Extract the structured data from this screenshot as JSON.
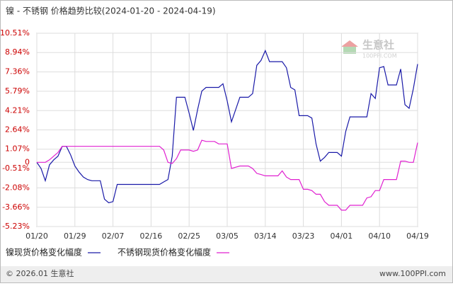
{
  "chart_data": {
    "type": "line",
    "title": "镍 - 不锈钢 价格趋势比较(2024-01-20 - 2024-04-19)",
    "categories": [
      "01/20",
      null,
      null,
      null,
      null,
      null,
      null,
      null,
      null,
      "01/29",
      null,
      null,
      null,
      null,
      null,
      null,
      null,
      null,
      "02/07",
      null,
      null,
      null,
      null,
      null,
      null,
      null,
      null,
      "02/16",
      null,
      null,
      null,
      null,
      null,
      null,
      null,
      null,
      "02/25",
      null,
      null,
      null,
      null,
      null,
      null,
      null,
      null,
      "03/05",
      null,
      null,
      null,
      null,
      null,
      null,
      null,
      null,
      "03/14",
      null,
      null,
      null,
      null,
      null,
      null,
      null,
      null,
      "03/23",
      null,
      null,
      null,
      null,
      null,
      null,
      null,
      null,
      "04/01",
      null,
      null,
      null,
      null,
      null,
      null,
      null,
      null,
      "04/10",
      null,
      null,
      null,
      null,
      null,
      null,
      null,
      null,
      "04/19"
    ],
    "series": [
      {
        "name": "镍现货价格变化幅度",
        "color": "#1a1aa8",
        "values": [
          0,
          -0.5,
          -1.5,
          -0.2,
          0.2,
          0.5,
          1.3,
          1.3,
          0.6,
          -0.3,
          -0.8,
          -1.2,
          -1.4,
          -1.5,
          -1.5,
          -1.5,
          -3.0,
          -3.3,
          -3.2,
          -1.8,
          -1.8,
          -1.8,
          -1.8,
          -1.8,
          -1.8,
          -1.8,
          -1.8,
          -1.8,
          -1.8,
          -1.8,
          -1.6,
          -1.4,
          0.5,
          5.3,
          5.3,
          5.3,
          4.0,
          2.6,
          4.3,
          5.8,
          6.1,
          6.1,
          6.1,
          6.1,
          6.4,
          5.0,
          3.3,
          4.3,
          5.3,
          5.3,
          5.3,
          5.6,
          7.9,
          8.3,
          9.1,
          8.2,
          8.2,
          8.2,
          8.2,
          7.7,
          6.1,
          5.9,
          3.8,
          3.8,
          3.8,
          3.6,
          1.5,
          0.1,
          0.4,
          0.8,
          0.8,
          0.8,
          0.5,
          2.5,
          3.7,
          3.7,
          3.7,
          3.7,
          3.7,
          5.6,
          5.2,
          7.7,
          7.8,
          6.3,
          6.3,
          6.3,
          7.6,
          4.7,
          4.4,
          6.0,
          8.0
        ]
      },
      {
        "name": "不锈钢现货价格变化幅度",
        "color": "#e020d0",
        "values": [
          0,
          0,
          0,
          0.2,
          0.5,
          0.8,
          1.3,
          1.3,
          1.3,
          1.3,
          1.3,
          1.3,
          1.3,
          1.3,
          1.3,
          1.3,
          1.3,
          1.3,
          1.3,
          1.3,
          1.3,
          1.3,
          1.3,
          1.3,
          1.3,
          1.3,
          1.3,
          1.3,
          1.3,
          1.3,
          1.0,
          0,
          -0.1,
          0.3,
          1.0,
          1.0,
          1.0,
          0.9,
          1.0,
          1.8,
          1.7,
          1.7,
          1.7,
          1.5,
          1.5,
          1.5,
          -0.5,
          -0.4,
          -0.3,
          -0.3,
          -0.3,
          -0.5,
          -0.9,
          -1.0,
          -1.1,
          -1.1,
          -1.1,
          -1.1,
          -0.7,
          -1.2,
          -1.4,
          -1.4,
          -1.4,
          -2.2,
          -2.2,
          -2.3,
          -2.6,
          -2.6,
          -3.2,
          -3.5,
          -3.5,
          -3.5,
          -3.9,
          -3.9,
          -3.5,
          -3.5,
          -3.5,
          -3.5,
          -2.9,
          -2.8,
          -2.3,
          -2.3,
          -1.4,
          -1.4,
          -1.4,
          -1.4,
          0.1,
          0.1,
          0,
          0,
          1.6
        ]
      }
    ],
    "ylim": [
      -5.23,
      10.51
    ],
    "yticks": [
      {
        "value": 10.51,
        "label": "10.51%"
      },
      {
        "value": 8.94,
        "label": "8.94%"
      },
      {
        "value": 7.36,
        "label": "7.36%"
      },
      {
        "value": 5.79,
        "label": "5.79%"
      },
      {
        "value": 4.21,
        "label": "4.21%"
      },
      {
        "value": 2.64,
        "label": "2.64%"
      },
      {
        "value": 1.07,
        "label": "1.07%"
      },
      0,
      {
        "value": -0.51,
        "label": "-0.51%"
      },
      {
        "value": -2.08,
        "label": "-2.08%"
      },
      {
        "value": -3.66,
        "label": "-3.66%"
      },
      {
        "value": -5.23,
        "label": "-5.23%"
      }
    ],
    "grid": true
  },
  "watermark": {
    "name": "生意社",
    "site": "100PPI.COM"
  },
  "footer": {
    "left": "© 2026.01 生意社",
    "right": "www.100PPI.com"
  }
}
